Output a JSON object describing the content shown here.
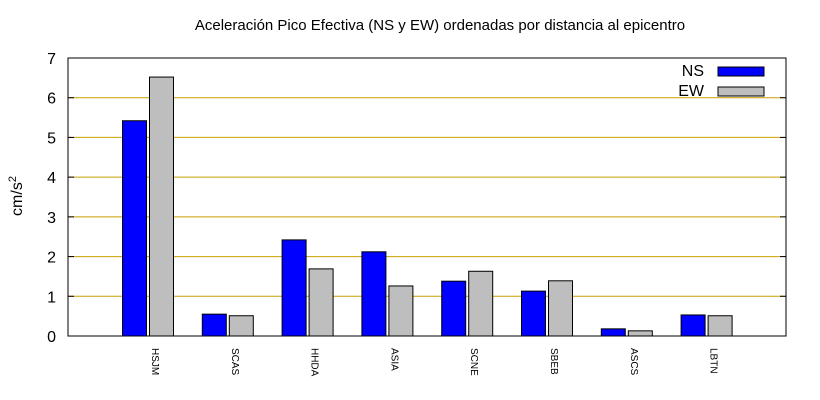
{
  "chart_data": {
    "type": "bar",
    "title": "Aceleración Pico Efectiva (NS y EW) ordenadas por distancia al epicentro",
    "ylabel": "cm/s",
    "ylabel_exponent": "2",
    "xlabel": "",
    "ylim": [
      0,
      7
    ],
    "yticks": [
      "0",
      "1",
      "2",
      "3",
      "4",
      "5",
      "6",
      "7"
    ],
    "grid": "horizontal",
    "legend_position": "top-right",
    "categories": [
      "HSJM",
      "SCAS",
      "HHDA",
      "ASIA",
      "SCNE",
      "SBEB",
      "ASCS",
      "LBTN"
    ],
    "series": [
      {
        "name": "NS",
        "color": "#0000ff",
        "values": [
          5.42,
          0.55,
          2.42,
          2.12,
          1.38,
          1.13,
          0.18,
          0.53
        ]
      },
      {
        "name": "EW",
        "color": "#bebebe",
        "values": [
          6.52,
          0.51,
          1.69,
          1.26,
          1.63,
          1.39,
          0.13,
          0.51
        ]
      }
    ],
    "grid_color": "#c8a000"
  }
}
